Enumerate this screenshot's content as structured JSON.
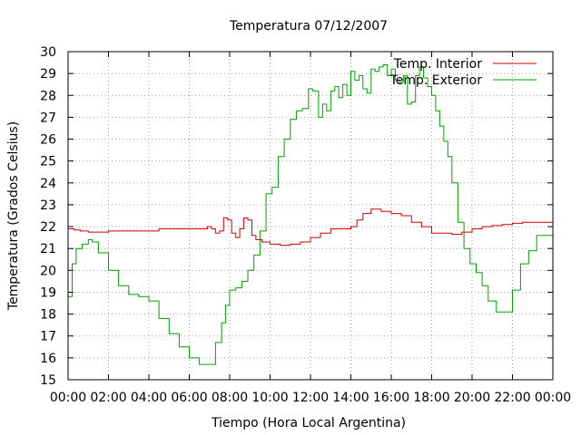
{
  "chart_data": {
    "type": "line",
    "title": "Temperatura 07/12/2007",
    "xlabel": "Tiempo (Hora Local Argentina)",
    "ylabel": "Temperatura (Grados Celsius)",
    "xlim": [
      0,
      24
    ],
    "ylim": [
      15,
      30
    ],
    "x_ticks": [
      "00:00",
      "02:00",
      "04:00",
      "06:00",
      "08:00",
      "10:00",
      "12:00",
      "14:00",
      "16:00",
      "18:00",
      "20:00",
      "22:00",
      "00:00"
    ],
    "y_ticks": [
      15,
      16,
      17,
      18,
      19,
      20,
      21,
      22,
      23,
      24,
      25,
      26,
      27,
      28,
      29,
      30
    ],
    "grid": true,
    "legend_position": "top-right",
    "series": [
      {
        "name": "Temp. Interior",
        "color": "#d00000",
        "x": [
          0,
          0.3,
          0.6,
          1.0,
          1.5,
          2.0,
          3.0,
          4.0,
          4.5,
          5.5,
          6.5,
          6.9,
          7.1,
          7.3,
          7.5,
          7.7,
          7.9,
          8.1,
          8.3,
          8.5,
          8.7,
          8.9,
          9.1,
          9.3,
          9.6,
          10.0,
          10.5,
          11.0,
          11.5,
          12.0,
          12.5,
          13.0,
          13.5,
          14.0,
          14.3,
          14.6,
          15.0,
          15.5,
          16.0,
          16.5,
          17.0,
          17.5,
          18.0,
          18.5,
          19.0,
          19.5,
          20.0,
          20.5,
          21.0,
          21.5,
          22.0,
          22.5,
          23.0,
          23.5,
          24.0
        ],
        "values": [
          21.9,
          21.85,
          21.8,
          21.75,
          21.75,
          21.8,
          21.8,
          21.8,
          21.9,
          21.9,
          21.9,
          22.0,
          21.9,
          21.7,
          21.8,
          22.4,
          22.3,
          21.7,
          21.5,
          21.9,
          22.4,
          22.3,
          21.6,
          21.4,
          21.3,
          21.2,
          21.15,
          21.2,
          21.3,
          21.5,
          21.7,
          21.9,
          21.9,
          22.0,
          22.3,
          22.6,
          22.8,
          22.7,
          22.6,
          22.5,
          22.2,
          22.0,
          21.7,
          21.7,
          21.65,
          21.75,
          21.9,
          22.0,
          22.05,
          22.1,
          22.15,
          22.2,
          22.2,
          22.2,
          22.2
        ]
      },
      {
        "name": "Temp. Exterior",
        "color": "#00a000",
        "x": [
          0,
          0.2,
          0.4,
          0.7,
          1.0,
          1.2,
          1.5,
          2.0,
          2.5,
          3.0,
          3.5,
          4.0,
          4.5,
          5.0,
          5.5,
          6.0,
          6.5,
          7.0,
          7.3,
          7.6,
          7.8,
          8.0,
          8.3,
          8.6,
          8.9,
          9.2,
          9.5,
          9.8,
          10.1,
          10.4,
          10.7,
          11.0,
          11.3,
          11.6,
          11.9,
          12.1,
          12.4,
          12.6,
          12.8,
          13.0,
          13.2,
          13.4,
          13.6,
          13.8,
          14.0,
          14.2,
          14.4,
          14.6,
          14.8,
          15.0,
          15.2,
          15.4,
          15.6,
          15.8,
          16.0,
          16.2,
          16.4,
          16.6,
          16.8,
          17.0,
          17.2,
          17.4,
          17.6,
          17.8,
          18.0,
          18.2,
          18.4,
          18.6,
          18.8,
          19.0,
          19.3,
          19.6,
          19.9,
          20.2,
          20.5,
          20.8,
          21.2,
          21.6,
          22.0,
          22.4,
          22.8,
          23.2,
          23.6,
          24.0
        ],
        "values": [
          18.8,
          20.3,
          21.0,
          21.2,
          21.4,
          21.3,
          20.8,
          20.0,
          19.3,
          18.9,
          18.8,
          18.6,
          17.8,
          17.1,
          16.5,
          16.0,
          15.7,
          15.7,
          16.7,
          17.6,
          18.4,
          19.1,
          19.2,
          19.5,
          20.0,
          20.7,
          21.8,
          23.5,
          23.8,
          25.2,
          26.0,
          26.9,
          27.3,
          27.4,
          28.3,
          28.2,
          27.0,
          27.6,
          27.3,
          28.2,
          28.4,
          27.9,
          28.5,
          28.0,
          29.1,
          28.7,
          28.9,
          28.3,
          28.1,
          29.2,
          29.1,
          29.3,
          29.4,
          28.9,
          29.2,
          28.7,
          28.6,
          28.9,
          27.6,
          27.7,
          28.9,
          29.3,
          28.8,
          28.4,
          28.0,
          27.3,
          26.6,
          25.9,
          25.2,
          24.0,
          22.2,
          21.0,
          20.3,
          19.9,
          19.3,
          18.6,
          18.1,
          18.1,
          19.1,
          20.3,
          20.9,
          21.6,
          21.6,
          21.6
        ]
      }
    ]
  }
}
